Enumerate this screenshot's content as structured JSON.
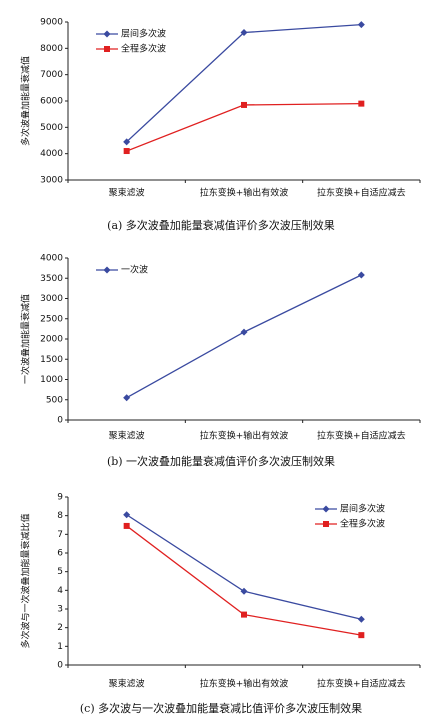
{
  "chart_data": [
    {
      "type": "line",
      "caption": "(a) 多次波叠加能量衰减值评价多次波压制效果",
      "ylabel": "多次波叠加能量衰减值",
      "categories": [
        "聚束滤波",
        "拉东变换+输出有效波",
        "拉东变换+自适应减去"
      ],
      "series": [
        {
          "name": "层间多次波",
          "color": "#3a4aa0",
          "marker": "diamond",
          "values": [
            4450,
            8600,
            8900
          ]
        },
        {
          "name": "全程多次波",
          "color": "#e02020",
          "marker": "square",
          "values": [
            4100,
            5850,
            5900
          ]
        }
      ],
      "ylim": [
        3000,
        9000
      ],
      "yticks": [
        3000,
        4000,
        5000,
        6000,
        7000,
        8000,
        9000
      ],
      "legend": "upper left"
    },
    {
      "type": "line",
      "caption": "(b) 一次波叠加能量衰减值评价多次波压制效果",
      "ylabel": "一次波叠加能量衰减值",
      "categories": [
        "聚束滤波",
        "拉东变换+输出有效波",
        "拉东变换+自适应减去"
      ],
      "series": [
        {
          "name": "一次波",
          "color": "#3a4aa0",
          "marker": "diamond",
          "values": [
            550,
            2170,
            3580
          ]
        }
      ],
      "ylim": [
        0,
        4000
      ],
      "yticks": [
        0,
        500,
        1000,
        1500,
        2000,
        2500,
        3000,
        3500,
        4000
      ],
      "legend": "upper left"
    },
    {
      "type": "line",
      "caption": "(c) 多次波与一次波叠加能量衰减比值评价多次波压制效果",
      "ylabel": "多次波与一次波叠加能量衰减比值",
      "categories": [
        "聚束滤波",
        "拉东变换+输出有效波",
        "拉东变换+自适应减去"
      ],
      "series": [
        {
          "name": "层间多次波",
          "color": "#3a4aa0",
          "marker": "diamond",
          "values": [
            8.05,
            3.95,
            2.45
          ]
        },
        {
          "name": "全程多次波",
          "color": "#e02020",
          "marker": "square",
          "values": [
            7.45,
            2.7,
            1.6
          ]
        }
      ],
      "ylim": [
        0,
        9
      ],
      "yticks": [
        0,
        1,
        2,
        3,
        4,
        5,
        6,
        7,
        8,
        9
      ],
      "legend": "upper right"
    }
  ]
}
